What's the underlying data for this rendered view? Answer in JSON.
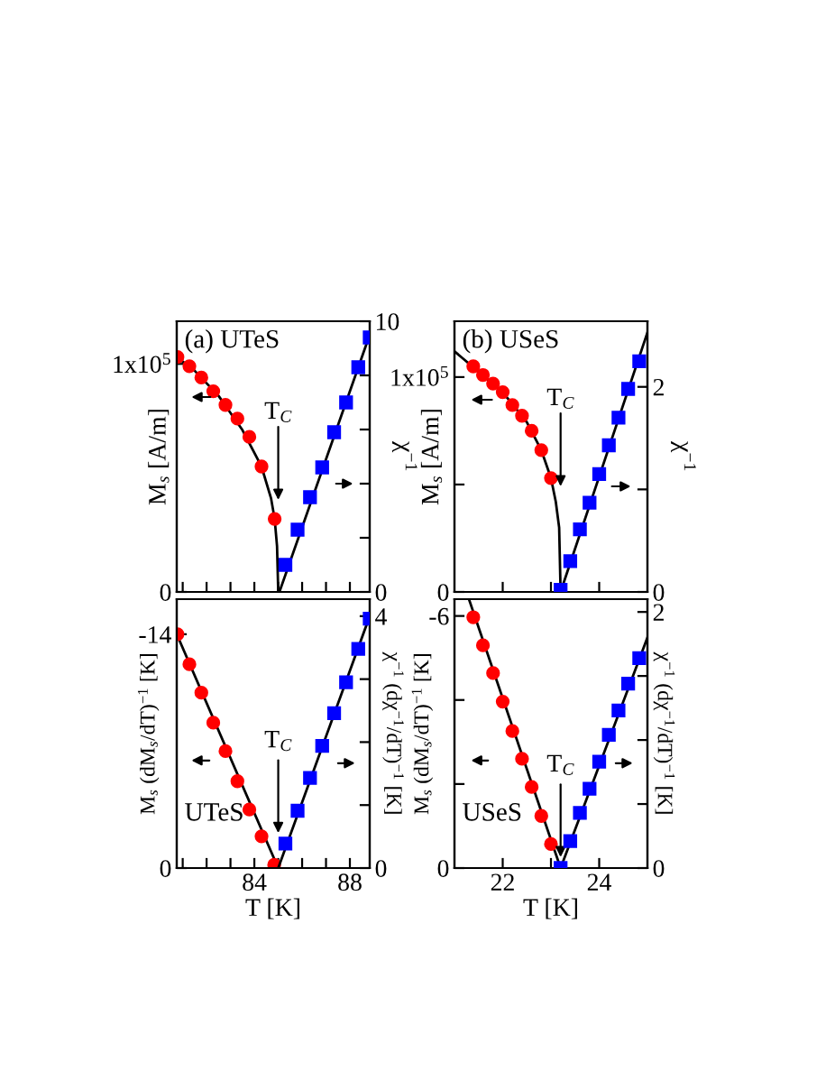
{
  "chart_data": [
    {
      "type": "scatter",
      "title": "(a) UTeS",
      "ylabel": "M$_{s}$ [A/m]",
      "y2label": "χ$^{−1}$",
      "xlim": [
        80.75,
        88.83
      ],
      "xticks": [
        {
          "value": 81,
          "label": null
        },
        {
          "value": 82,
          "label": null
        },
        {
          "value": 83,
          "label": null
        },
        84,
        {
          "value": 85,
          "label": null
        },
        {
          "value": 86,
          "label": null
        },
        {
          "value": 87,
          "label": null
        },
        88
      ],
      "ylim": [
        0,
        118700
      ],
      "yticks": [
        0,
        {
          "value": 100000,
          "label": "1x10$^{5}$"
        }
      ],
      "y2lim": [
        0,
        10
      ],
      "y2ticks": [
        0,
        {
          "value": 2,
          "label": null
        },
        {
          "value": 4,
          "label": null
        },
        {
          "value": 6,
          "label": null
        },
        {
          "value": 8,
          "label": null
        },
        10
      ],
      "tick_labels": "y",
      "annotations": [
        "T$_{C}$"
      ],
      "series": [
        {
          "type": "line",
          "color": "#000000",
          "x": [
            80.75,
            81.5,
            82.5,
            83.5,
            84.3,
            84.7,
            84.85,
            84.95,
            85.0
          ],
          "values": [
            103000,
            97000,
            86000,
            71000,
            55000,
            41000,
            32000,
            20000,
            0
          ]
        },
        {
          "type": "line",
          "color": "#000000",
          "axis": "y2",
          "x": [
            85.05,
            88.83
          ],
          "values": [
            0,
            9.5
          ]
        },
        {
          "marker": "circle",
          "color": "#ff0000",
          "x": [
            80.78,
            81.28,
            81.78,
            82.28,
            82.79,
            83.29,
            83.79,
            84.3,
            84.85
          ],
          "values": [
            103000,
            99000,
            94000,
            88000,
            82000,
            76000,
            68000,
            55000,
            32000
          ]
        },
        {
          "marker": "square",
          "color": "#0000ff",
          "axis": "y2",
          "x": [
            85.3,
            85.81,
            86.33,
            86.84,
            87.34,
            87.84,
            88.35,
            88.83
          ],
          "values": [
            1.0,
            2.3,
            3.5,
            4.6,
            5.9,
            7.0,
            8.3,
            9.4
          ]
        }
      ]
    },
    {
      "type": "scatter",
      "title": "(b) USeS",
      "ylabel": "M$_{s}$ [A/m]",
      "y2label": "χ$^{−1}$",
      "xlim": [
        21,
        25
      ],
      "xticks": [
        22,
        {
          "value": 23,
          "label": null
        },
        24
      ],
      "ylim": [
        0,
        126000
      ],
      "yticks": [
        0,
        {
          "value": 50000,
          "label": null
        },
        {
          "value": 100000,
          "label": "1x10$^{5}$"
        }
      ],
      "y2lim": [
        0,
        2.64
      ],
      "y2ticks": [
        0,
        {
          "value": 1,
          "label": null
        },
        2
      ],
      "tick_labels": "y",
      "annotations": [
        "T$_{C}$"
      ],
      "series": [
        {
          "type": "line",
          "color": "#000000",
          "x": [
            21.0,
            22.0,
            22.5,
            22.8,
            23.0,
            23.1,
            23.17,
            23.2
          ],
          "values": [
            112000,
            93000,
            79000,
            66000,
            53000,
            42000,
            30000,
            0
          ]
        },
        {
          "type": "line",
          "color": "#000000",
          "axis": "y2",
          "x": [
            23.2,
            25.0
          ],
          "values": [
            0,
            2.53
          ]
        },
        {
          "marker": "circle",
          "color": "#ff0000",
          "x": [
            21.39,
            21.59,
            21.8,
            22.0,
            22.2,
            22.4,
            22.6,
            22.8,
            23.0
          ],
          "values": [
            105000,
            101000,
            97000,
            93000,
            87000,
            82000,
            75000,
            66000,
            53000
          ]
        },
        {
          "marker": "square",
          "color": "#0000ff",
          "axis": "y2",
          "x": [
            23.2,
            23.4,
            23.6,
            23.8,
            24.0,
            24.2,
            24.4,
            24.6,
            24.83
          ],
          "values": [
            0.02,
            0.3,
            0.61,
            0.87,
            1.15,
            1.43,
            1.7,
            1.98,
            2.25
          ]
        }
      ]
    },
    {
      "type": "scatter",
      "xlabel": "T [K]",
      "ylabel": "M$_{s}$ (dM$_{s}$/dT)$^{−1}$ [K]",
      "y2label": "χ$^{−1}$ (dχ$^{−1}$/dT)$^{−1}$ [K]",
      "xlim": [
        80.75,
        88.83
      ],
      "xticks": [
        {
          "value": 81,
          "label": null
        },
        {
          "value": 82,
          "label": null
        },
        {
          "value": 83,
          "label": null
        },
        84,
        {
          "value": 85,
          "label": null
        },
        {
          "value": 86,
          "label": null
        },
        {
          "value": 87,
          "label": null
        },
        88
      ],
      "ylim": [
        0,
        -16.1
      ],
      "yticks": [
        0,
        -14
      ],
      "y2lim": [
        0,
        4.27
      ],
      "y2ticks": [
        0,
        {
          "value": 1,
          "label": null
        },
        {
          "value": 2,
          "label": null
        },
        {
          "value": 3,
          "label": null
        },
        4
      ],
      "annotations": [
        "UTeS",
        {
          "text": "T$_{C}$",
          "x": 85.0,
          "y": -2.1
        }
      ],
      "series": [
        {
          "type": "line",
          "color": "#000000",
          "x": [
            80.75,
            85.0
          ],
          "values": [
            -14.0,
            0
          ]
        },
        {
          "type": "line",
          "color": "#000000",
          "axis": "y2",
          "x": [
            85.0,
            88.83
          ],
          "values": [
            0,
            4.0
          ]
        },
        {
          "marker": "circle",
          "color": "#ff0000",
          "x": [
            80.78,
            81.28,
            81.78,
            82.28,
            82.79,
            83.29,
            83.79,
            84.3,
            84.83
          ],
          "values": [
            -14.0,
            -12.2,
            -10.5,
            -8.7,
            -7.0,
            -5.2,
            -3.5,
            -1.9,
            -0.2
          ]
        },
        {
          "marker": "square",
          "color": "#0000ff",
          "axis": "y2",
          "x": [
            85.3,
            85.81,
            86.33,
            86.84,
            87.34,
            87.84,
            88.35,
            88.83
          ],
          "values": [
            0.39,
            0.91,
            1.43,
            1.94,
            2.46,
            2.95,
            3.48,
            3.96
          ]
        }
      ]
    },
    {
      "type": "scatter",
      "xlabel": "T [K]",
      "ylabel": "M$_{s}$ (dM$_{s}$/dT)$^{−1}$ [K]",
      "y2label": "χ$^{−1}$ (dχ$^{−1}$/dT)$^{−1}$ [K]",
      "xlim": [
        21,
        25
      ],
      "xticks": [
        22,
        {
          "value": 23,
          "label": null
        },
        24
      ],
      "ylim": [
        0,
        -6.4
      ],
      "yticks": [
        0,
        {
          "value": -2,
          "label": null
        },
        {
          "value": -4,
          "label": null
        },
        -6
      ],
      "y2lim": [
        0,
        2.1
      ],
      "y2ticks": [
        0,
        {
          "value": 0.5,
          "label": null
        },
        {
          "value": 1,
          "label": null
        },
        {
          "value": 1.5,
          "label": null
        },
        2
      ],
      "annotations": [
        "USeS",
        {
          "text": "T$_{C}$",
          "x": 23.2,
          "y": -0.26
        }
      ],
      "series": [
        {
          "type": "line",
          "color": "#000000",
          "x": [
            21.3,
            23.2
          ],
          "values": [
            -6.4,
            0
          ]
        },
        {
          "type": "line",
          "color": "#000000",
          "axis": "y2",
          "x": [
            23.2,
            25.0
          ],
          "values": [
            0,
            1.8
          ]
        },
        {
          "marker": "circle",
          "color": "#ff0000",
          "x": [
            21.39,
            21.59,
            21.8,
            22.0,
            22.2,
            22.4,
            22.6,
            22.8,
            23.0
          ],
          "values": [
            -5.97,
            -5.3,
            -4.64,
            -3.96,
            -3.26,
            -2.6,
            -1.93,
            -1.24,
            -0.57
          ]
        },
        {
          "marker": "square",
          "color": "#0000ff",
          "axis": "y2",
          "x": [
            23.2,
            23.4,
            23.6,
            23.8,
            24.0,
            24.2,
            24.4,
            24.6,
            24.83
          ],
          "values": [
            0.0,
            0.21,
            0.43,
            0.62,
            0.83,
            1.04,
            1.23,
            1.44,
            1.64
          ]
        }
      ]
    }
  ]
}
